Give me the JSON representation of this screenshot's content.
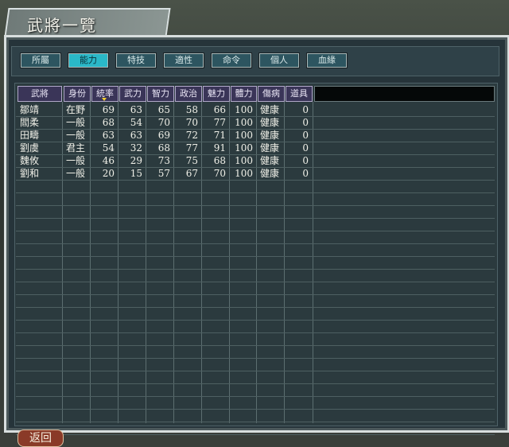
{
  "window": {
    "title": "武將一覽"
  },
  "tabs": [
    {
      "label": "所屬"
    },
    {
      "label": "能力",
      "active": true
    },
    {
      "label": "特技"
    },
    {
      "label": "適性"
    },
    {
      "label": "命令"
    },
    {
      "label": "個人"
    },
    {
      "label": "血緣"
    }
  ],
  "columns": [
    "武將",
    "身份",
    "統率",
    "武力",
    "智力",
    "政治",
    "魅力",
    "體力",
    "傷病",
    "道具"
  ],
  "sort_column": "統率",
  "rows": [
    [
      "鄒靖",
      "在野",
      "69",
      "63",
      "65",
      "58",
      "66",
      "100",
      "健康",
      "0"
    ],
    [
      "閻柔",
      "一般",
      "68",
      "54",
      "70",
      "70",
      "77",
      "100",
      "健康",
      "0"
    ],
    [
      "田疇",
      "一般",
      "63",
      "63",
      "69",
      "72",
      "71",
      "100",
      "健康",
      "0"
    ],
    [
      "劉虞",
      "君主",
      "54",
      "32",
      "68",
      "77",
      "91",
      "100",
      "健康",
      "0"
    ],
    [
      "魏攸",
      "一般",
      "46",
      "29",
      "73",
      "75",
      "68",
      "100",
      "健康",
      "0"
    ],
    [
      "劉和",
      "一般",
      "20",
      "15",
      "57",
      "67",
      "70",
      "100",
      "健康",
      "0"
    ]
  ],
  "back_label": "返回",
  "colors": {
    "active_tab": "#2ab8c8",
    "header": "#3a3558",
    "panel": "#26343a"
  }
}
